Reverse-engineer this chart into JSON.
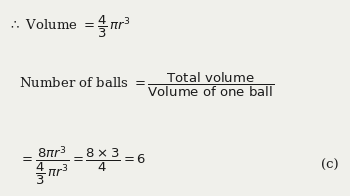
{
  "bg_color": "#f0f0eb",
  "text_color": "#1a1a1a",
  "fig_width": 3.5,
  "fig_height": 1.96,
  "dpi": 100
}
